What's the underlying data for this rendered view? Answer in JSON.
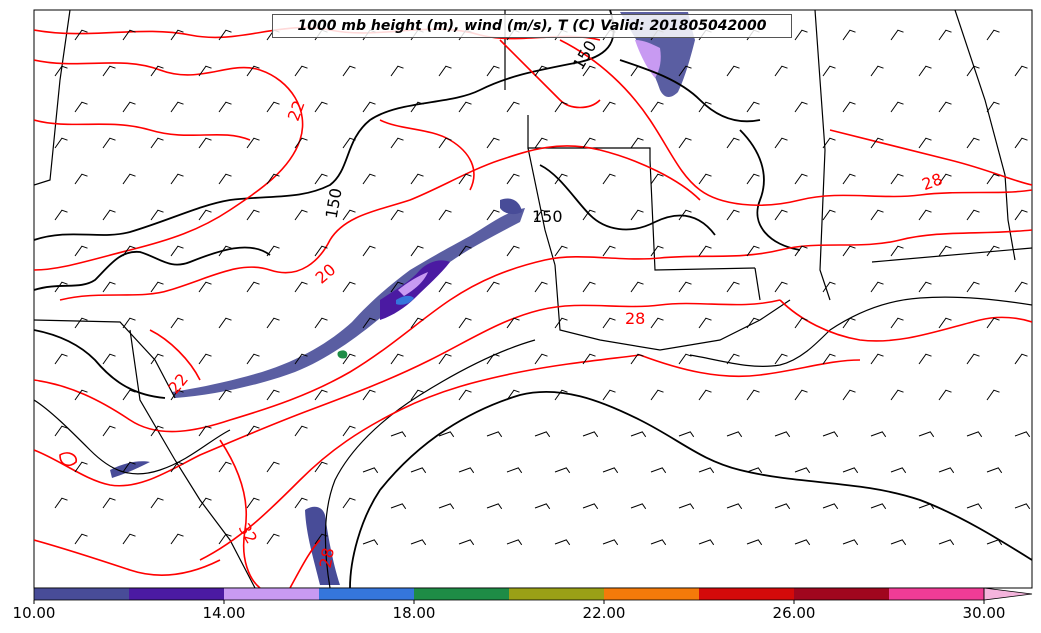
{
  "title": "1000 mb height (m), wind (m/s), T (C) Valid: 201805042000",
  "contour_labels": {
    "height": [
      "150",
      "150",
      "150"
    ],
    "temperature": [
      "22",
      "20",
      "28",
      "28",
      "32",
      "22",
      "28"
    ]
  },
  "colorbar": {
    "tick_labels": [
      "10.00",
      "14.00",
      "18.00",
      "22.00",
      "26.00",
      "30.00"
    ],
    "colors": [
      "#484c98",
      "#4b1aa2",
      "#c89af2",
      "#3576dc",
      "#1e8c46",
      "#9aa016",
      "#f47a0a",
      "#d40a0a",
      "#a0061e",
      "#f03c96",
      "#f4b4dc"
    ],
    "min": 10,
    "max": 30,
    "step": 2
  },
  "colors": {
    "temperature_contour": "#ff0000",
    "height_contour": "#000000",
    "boundaries": "#000000",
    "barbs": "#000000"
  }
}
